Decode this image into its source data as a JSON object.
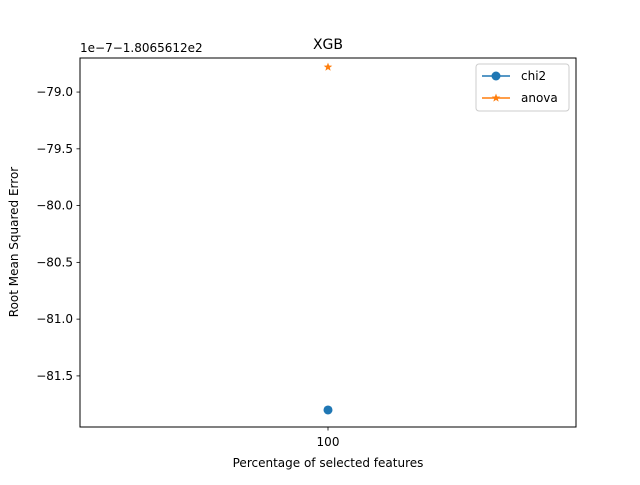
{
  "chart_data": {
    "type": "line",
    "title": "XGB",
    "xlabel": "Percentage of selected features",
    "ylabel": "Root Mean Squared Error",
    "axis_offset_text": "1e−7−1.8065612e2",
    "x_ticks": [
      100
    ],
    "x_tick_labels": [
      "100"
    ],
    "y_ticks": [
      -79.0,
      -79.5,
      -80.0,
      -80.5,
      -81.0,
      -81.5
    ],
    "y_tick_labels": [
      "−79.0",
      "−79.5",
      "−80.0",
      "−80.5",
      "−81.0",
      "−81.5"
    ],
    "xlim": [
      99.5,
      100.5
    ],
    "ylim": [
      -81.95,
      -78.7
    ],
    "grid": false,
    "legend_position": "upper right",
    "series": [
      {
        "name": "chi2",
        "color": "#1f77b4",
        "marker": "circle",
        "x": [
          100
        ],
        "y": [
          -81.8
        ]
      },
      {
        "name": "anova",
        "color": "#ff7f0e",
        "marker": "star",
        "x": [
          100
        ],
        "y": [
          -78.78
        ]
      }
    ]
  }
}
